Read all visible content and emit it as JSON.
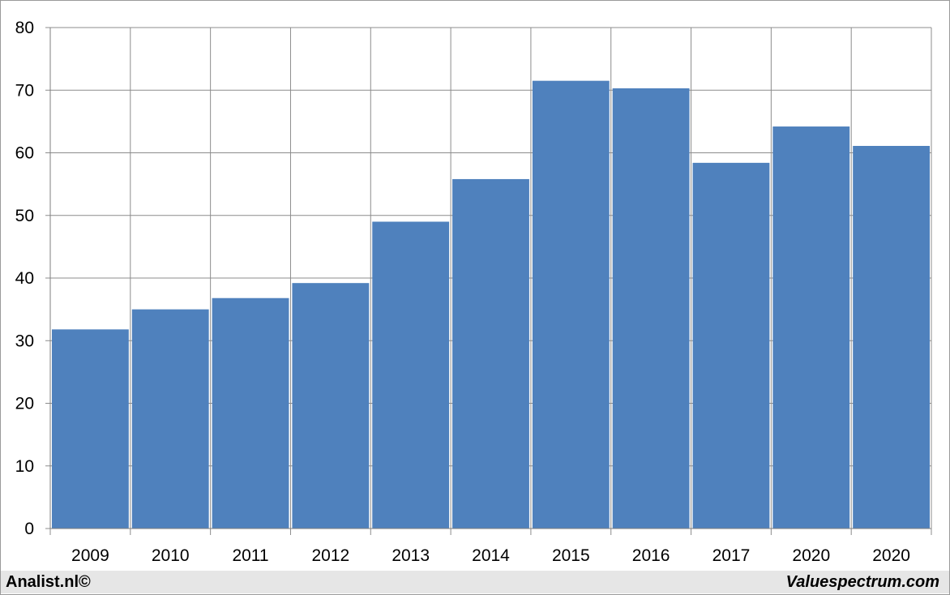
{
  "chart_data": {
    "type": "bar",
    "categories": [
      "2009",
      "2010",
      "2011",
      "2012",
      "2013",
      "2014",
      "2015",
      "2016",
      "2017",
      "2020",
      "2020"
    ],
    "values": [
      31.8,
      35.0,
      36.8,
      39.2,
      49.0,
      55.8,
      71.5,
      70.3,
      58.4,
      64.2,
      61.1
    ],
    "title": "",
    "xlabel": "",
    "ylabel": "",
    "ylim": [
      0,
      80
    ],
    "yticks": [
      0,
      10,
      20,
      30,
      40,
      50,
      60,
      70,
      80
    ],
    "grid": true,
    "legend": "none",
    "bar_color": "#4f81bd",
    "grid_color": "#8c8c8c"
  },
  "footer": {
    "left_text": "Analist.nl©",
    "right_text": "Valuespectrum.com"
  }
}
